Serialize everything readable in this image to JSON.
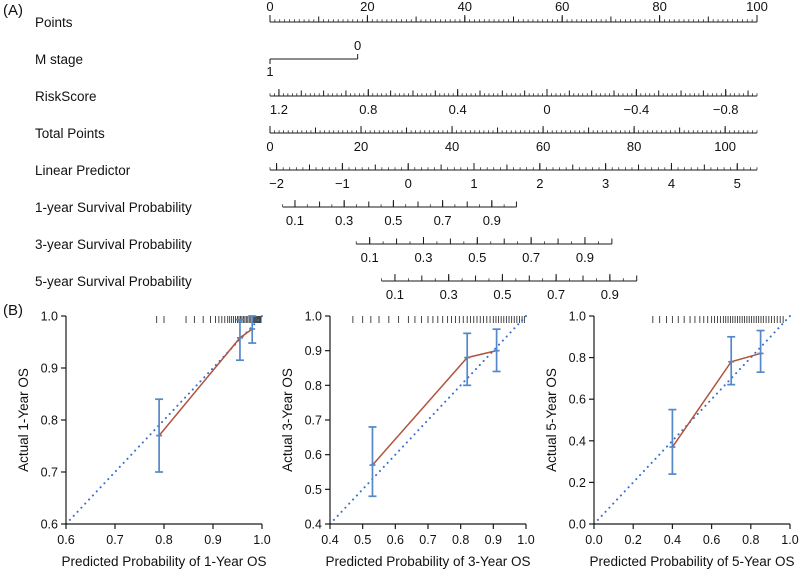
{
  "figure": {
    "panel_a_label": "(A)",
    "panel_b_label": "(B)"
  },
  "colors": {
    "axis": "#1a1a1a",
    "ideal_line": "#3b6fce",
    "calibration_line": "#b0543c",
    "error_bar": "#5488c8",
    "rug": "#333333"
  },
  "chart_data": [
    {
      "id": "nomogram",
      "type": "nomogram",
      "rows": [
        {
          "name": "points",
          "label": "Points",
          "kind": "axis",
          "span": [
            0,
            1
          ],
          "vmin": 0,
          "vmax": 100,
          "minor": 1,
          "medium": 10,
          "label_side": "above",
          "majors": [
            {
              "v": 0,
              "t": "0"
            },
            {
              "v": 20,
              "t": "20"
            },
            {
              "v": 40,
              "t": "40"
            },
            {
              "v": 60,
              "t": "60"
            },
            {
              "v": 80,
              "t": "80"
            },
            {
              "v": 100,
              "t": "100"
            }
          ]
        },
        {
          "name": "m-stage",
          "label": "M stage",
          "kind": "factor",
          "span": [
            0,
            0.18
          ],
          "levels": [
            {
              "t": "1",
              "pos": 0,
              "side": "below"
            },
            {
              "t": "0",
              "pos": 1,
              "side": "above"
            }
          ]
        },
        {
          "name": "risk-score",
          "label": "RiskScore",
          "kind": "axis",
          "span": [
            0,
            1
          ],
          "vmin": 1.24,
          "vmax": -0.94,
          "minor": 0.02,
          "medium": 0.1,
          "label_side": "below",
          "majors": [
            {
              "v": 1.2,
              "t": "1.2"
            },
            {
              "v": 0.8,
              "t": "0.8"
            },
            {
              "v": 0.4,
              "t": "0.4"
            },
            {
              "v": 0,
              "t": "0"
            },
            {
              "v": -0.4,
              "t": "−0.4"
            },
            {
              "v": -0.8,
              "t": "−0.8"
            }
          ]
        },
        {
          "name": "total-points",
          "label": "Total Points",
          "kind": "axis",
          "span": [
            0,
            1
          ],
          "vmin": 0,
          "vmax": 107,
          "minor": 1,
          "medium": 10,
          "label_side": "below",
          "majors": [
            {
              "v": 0,
              "t": "0"
            },
            {
              "v": 20,
              "t": "20"
            },
            {
              "v": 40,
              "t": "40"
            },
            {
              "v": 60,
              "t": "60"
            },
            {
              "v": 80,
              "t": "80"
            },
            {
              "v": 100,
              "t": "100"
            }
          ]
        },
        {
          "name": "linear-predictor",
          "label": "Linear Predictor",
          "kind": "axis",
          "span": [
            0,
            1
          ],
          "vmin": -2.1,
          "vmax": 5.3,
          "minor": 0.1,
          "medium": 0.5,
          "label_side": "below",
          "majors": [
            {
              "v": -2,
              "t": "−2"
            },
            {
              "v": -1,
              "t": "−1"
            },
            {
              "v": 0,
              "t": "0"
            },
            {
              "v": 1,
              "t": "1"
            },
            {
              "v": 2,
              "t": "2"
            },
            {
              "v": 3,
              "t": "3"
            },
            {
              "v": 4,
              "t": "4"
            },
            {
              "v": 5,
              "t": "5"
            }
          ]
        },
        {
          "name": "survival-1-year",
          "label": "1-year Survival Probability",
          "kind": "axis",
          "span": [
            0.026,
            0.506
          ],
          "vmin": 0.05,
          "vmax": 1.0,
          "minor": 0.05,
          "medium": 0.1,
          "label_side": "below",
          "majors": [
            {
              "v": 0.1,
              "t": "0.1"
            },
            {
              "v": 0.3,
              "t": "0.3"
            },
            {
              "v": 0.5,
              "t": "0.5"
            },
            {
              "v": 0.7,
              "t": "0.7"
            },
            {
              "v": 0.9,
              "t": "0.9"
            }
          ]
        },
        {
          "name": "survival-3-year",
          "label": "3-year Survival Probability",
          "kind": "axis",
          "span": [
            0.177,
            0.702
          ],
          "vmin": 0.05,
          "vmax": 1.0,
          "minor": 0.05,
          "medium": 0.1,
          "label_side": "below",
          "majors": [
            {
              "v": 0.1,
              "t": "0.1"
            },
            {
              "v": 0.3,
              "t": "0.3"
            },
            {
              "v": 0.5,
              "t": "0.5"
            },
            {
              "v": 0.7,
              "t": "0.7"
            },
            {
              "v": 0.9,
              "t": "0.9"
            }
          ]
        },
        {
          "name": "survival-5-year",
          "label": "5-year Survival Probability",
          "kind": "axis",
          "span": [
            0.229,
            0.753
          ],
          "vmin": 0.05,
          "vmax": 1.0,
          "minor": 0.05,
          "medium": 0.1,
          "label_side": "below",
          "majors": [
            {
              "v": 0.1,
              "t": "0.1"
            },
            {
              "v": 0.3,
              "t": "0.3"
            },
            {
              "v": 0.5,
              "t": "0.5"
            },
            {
              "v": 0.7,
              "t": "0.7"
            },
            {
              "v": 0.9,
              "t": "0.9"
            }
          ]
        }
      ]
    },
    {
      "id": "calibration-1-year",
      "type": "line",
      "xlabel": "Predicted Probability of 1-Year OS",
      "ylabel": "Actual 1-Year OS",
      "xlim": [
        0.6,
        1.0
      ],
      "ylim": [
        0.6,
        1.0
      ],
      "xticks": [
        0.6,
        0.7,
        0.8,
        0.9,
        1.0
      ],
      "yticks": [
        0.6,
        0.7,
        0.8,
        0.9,
        1.0
      ],
      "ideal_line": true,
      "points": [
        {
          "x": 0.79,
          "y": 0.77,
          "lo": 0.7,
          "hi": 0.84
        },
        {
          "x": 0.955,
          "y": 0.958,
          "lo": 0.915,
          "hi": 0.993
        },
        {
          "x": 0.98,
          "y": 0.975,
          "lo": 0.948,
          "hi": 1.0
        }
      ],
      "rug": [
        0.785,
        0.8,
        0.845,
        0.862,
        0.88,
        0.895,
        0.905,
        0.912,
        0.918,
        0.924,
        0.93,
        0.934,
        0.938,
        0.942,
        0.946,
        0.95,
        0.953,
        0.956,
        0.959,
        0.962,
        0.965,
        0.968,
        0.971,
        0.974,
        0.977,
        0.98,
        0.982,
        0.984,
        0.986,
        0.988,
        0.99,
        0.992,
        0.994,
        0.996,
        0.998
      ]
    },
    {
      "id": "calibration-3-year",
      "type": "line",
      "xlabel": "Predicted Probability of 3-Year OS",
      "ylabel": "Actual 3-Year OS",
      "xlim": [
        0.4,
        1.0
      ],
      "ylim": [
        0.4,
        1.0
      ],
      "xticks": [
        0.4,
        0.5,
        0.6,
        0.7,
        0.8,
        0.9,
        1.0
      ],
      "yticks": [
        0.4,
        0.5,
        0.6,
        0.7,
        0.8,
        0.9,
        1.0
      ],
      "ideal_line": true,
      "points": [
        {
          "x": 0.53,
          "y": 0.57,
          "lo": 0.48,
          "hi": 0.68
        },
        {
          "x": 0.82,
          "y": 0.88,
          "lo": 0.8,
          "hi": 0.95
        },
        {
          "x": 0.91,
          "y": 0.9,
          "lo": 0.84,
          "hi": 0.962
        }
      ],
      "rug": [
        0.47,
        0.5,
        0.525,
        0.55,
        0.58,
        0.61,
        0.64,
        0.66,
        0.68,
        0.7,
        0.715,
        0.73,
        0.745,
        0.76,
        0.772,
        0.784,
        0.796,
        0.808,
        0.82,
        0.83,
        0.84,
        0.85,
        0.86,
        0.87,
        0.88,
        0.89,
        0.9,
        0.908,
        0.916,
        0.924,
        0.932,
        0.94,
        0.948,
        0.956,
        0.964,
        0.972,
        0.98,
        0.988,
        0.995
      ]
    },
    {
      "id": "calibration-5-year",
      "type": "line",
      "xlabel": "Predicted Probability of 5-Year OS",
      "ylabel": "Actual 5-Year OS",
      "xlim": [
        0.0,
        1.0
      ],
      "ylim": [
        0.0,
        1.0
      ],
      "xticks": [
        0.0,
        0.2,
        0.4,
        0.6,
        0.8,
        1.0
      ],
      "yticks": [
        0.0,
        0.2,
        0.4,
        0.6,
        0.8,
        1.0
      ],
      "ideal_line": true,
      "points": [
        {
          "x": 0.4,
          "y": 0.37,
          "lo": 0.24,
          "hi": 0.55
        },
        {
          "x": 0.7,
          "y": 0.78,
          "lo": 0.67,
          "hi": 0.9
        },
        {
          "x": 0.85,
          "y": 0.82,
          "lo": 0.73,
          "hi": 0.93
        }
      ],
      "rug": [
        0.3,
        0.335,
        0.37,
        0.4,
        0.43,
        0.46,
        0.49,
        0.515,
        0.54,
        0.56,
        0.58,
        0.6,
        0.615,
        0.63,
        0.645,
        0.66,
        0.672,
        0.684,
        0.696,
        0.708,
        0.72,
        0.732,
        0.744,
        0.756,
        0.768,
        0.78,
        0.792,
        0.804,
        0.816,
        0.828,
        0.84,
        0.852,
        0.864,
        0.878,
        0.892,
        0.906,
        0.92,
        0.935,
        0.95,
        0.965
      ]
    }
  ]
}
